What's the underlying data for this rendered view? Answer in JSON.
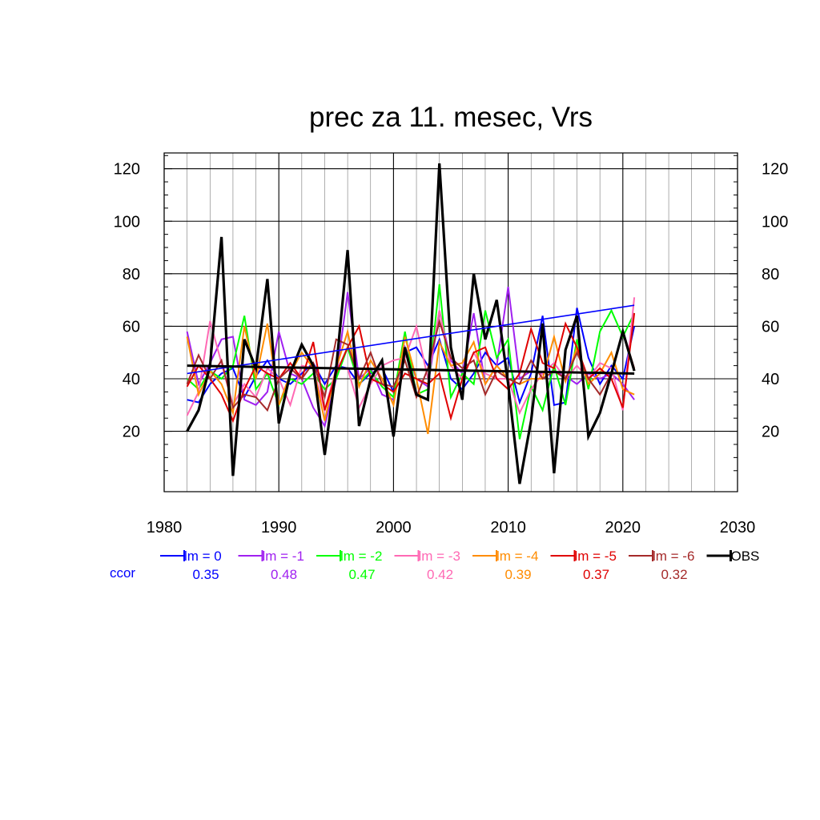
{
  "chart_data": {
    "type": "line",
    "title": "prec za 11. mesec, Vrs",
    "xlim": [
      1980,
      2030
    ],
    "ylim": [
      -3,
      126
    ],
    "x_ticks": [
      1980,
      1990,
      2000,
      2010,
      2020,
      2030
    ],
    "y_ticks": [
      20,
      40,
      60,
      80,
      100,
      120
    ],
    "grid": true,
    "legend_position": "bottom",
    "ccor_label": "ccor",
    "x": [
      1982,
      1983,
      1984,
      1985,
      1986,
      1987,
      1988,
      1989,
      1990,
      1991,
      1992,
      1993,
      1994,
      1995,
      1996,
      1997,
      1998,
      1999,
      2000,
      2001,
      2002,
      2003,
      2004,
      2005,
      2006,
      2007,
      2008,
      2009,
      2010,
      2011,
      2012,
      2013,
      2014,
      2015,
      2016,
      2017,
      2018,
      2019,
      2020,
      2021
    ],
    "series": [
      {
        "name": "lm = 0",
        "color": "#0000ff",
        "ccor": "0.35",
        "values": [
          32,
          31,
          38,
          42,
          44,
          33,
          41,
          47,
          40,
          38,
          42,
          46,
          38,
          45,
          44,
          38,
          42,
          44,
          35,
          50,
          52,
          45,
          55,
          40,
          36,
          42,
          50,
          45,
          48,
          31,
          42,
          64,
          30,
          31,
          67,
          48,
          38,
          45,
          40,
          60
        ],
        "trend": [
          42,
          68
        ]
      },
      {
        "name": "lm = -1",
        "color": "#a020f0",
        "ccor": "0.48",
        "values": [
          58,
          38,
          46,
          55,
          56,
          32,
          30,
          35,
          58,
          42,
          40,
          29,
          22,
          40,
          73,
          40,
          44,
          34,
          32,
          52,
          40,
          37,
          66,
          47,
          42,
          65,
          38,
          45,
          75,
          40,
          43,
          42,
          43,
          41,
          38,
          42,
          40,
          42,
          38,
          32
        ]
      },
      {
        "name": "lm = -2",
        "color": "#00ff00",
        "ccor": "0.47",
        "values": [
          40,
          36,
          43,
          40,
          45,
          64,
          36,
          42,
          30,
          40,
          38,
          42,
          36,
          40,
          52,
          38,
          43,
          37,
          33,
          58,
          34,
          36,
          76,
          33,
          42,
          38,
          66,
          48,
          55,
          17,
          37,
          28,
          45,
          30,
          55,
          36,
          58,
          66,
          56,
          65
        ]
      },
      {
        "name": "lm = -3",
        "color": "#ff69b4",
        "ccor": "0.42",
        "values": [
          26,
          35,
          62,
          46,
          30,
          38,
          33,
          44,
          40,
          30,
          45,
          44,
          28,
          44,
          44,
          29,
          38,
          45,
          47,
          48,
          60,
          40,
          66,
          45,
          40,
          50,
          42,
          40,
          40,
          27,
          36,
          42,
          46,
          40,
          45,
          40,
          46,
          44,
          28,
          71
        ]
      },
      {
        "name": "lm = -4",
        "color": "#ff8c00",
        "ccor": "0.39",
        "values": [
          56,
          34,
          43,
          38,
          27,
          60,
          40,
          61,
          30,
          42,
          50,
          44,
          24,
          44,
          58,
          37,
          47,
          40,
          30,
          56,
          40,
          19,
          54,
          45,
          46,
          54,
          38,
          45,
          40,
          38,
          40,
          40,
          56,
          39,
          52,
          38,
          42,
          50,
          36,
          34
        ]
      },
      {
        "name": "lm = -5",
        "color": "#e00000",
        "ccor": "0.37",
        "values": [
          37,
          45,
          40,
          34,
          24,
          36,
          45,
          42,
          40,
          46,
          40,
          54,
          28,
          42,
          52,
          60,
          40,
          38,
          35,
          42,
          40,
          38,
          42,
          25,
          40,
          50,
          52,
          40,
          36,
          42,
          59,
          46,
          44,
          61,
          52,
          40,
          44,
          40,
          29,
          65
        ]
      },
      {
        "name": "lm = -6",
        "color": "#a52a2a",
        "ccor": "0.32",
        "values": [
          38,
          49,
          40,
          47,
          29,
          34,
          33,
          28,
          40,
          44,
          40,
          46,
          33,
          55,
          53,
          40,
          50,
          38,
          37,
          47,
          33,
          44,
          62,
          48,
          44,
          47,
          34,
          43,
          40,
          38,
          47,
          40,
          43,
          40,
          50,
          40,
          34,
          42,
          58,
          44
        ]
      },
      {
        "name": "OBS",
        "color": "#000000",
        "ccor": "",
        "values": [
          20,
          28,
          45,
          94,
          3,
          55,
          44,
          78,
          23,
          42,
          53,
          45,
          11,
          44,
          89,
          22,
          40,
          47,
          18,
          52,
          34,
          32,
          122,
          52,
          32,
          80,
          55,
          70,
          38,
          0,
          24,
          61,
          4,
          51,
          64,
          18,
          27,
          42,
          58,
          43
        ],
        "trend": [
          45,
          42
        ]
      }
    ]
  }
}
